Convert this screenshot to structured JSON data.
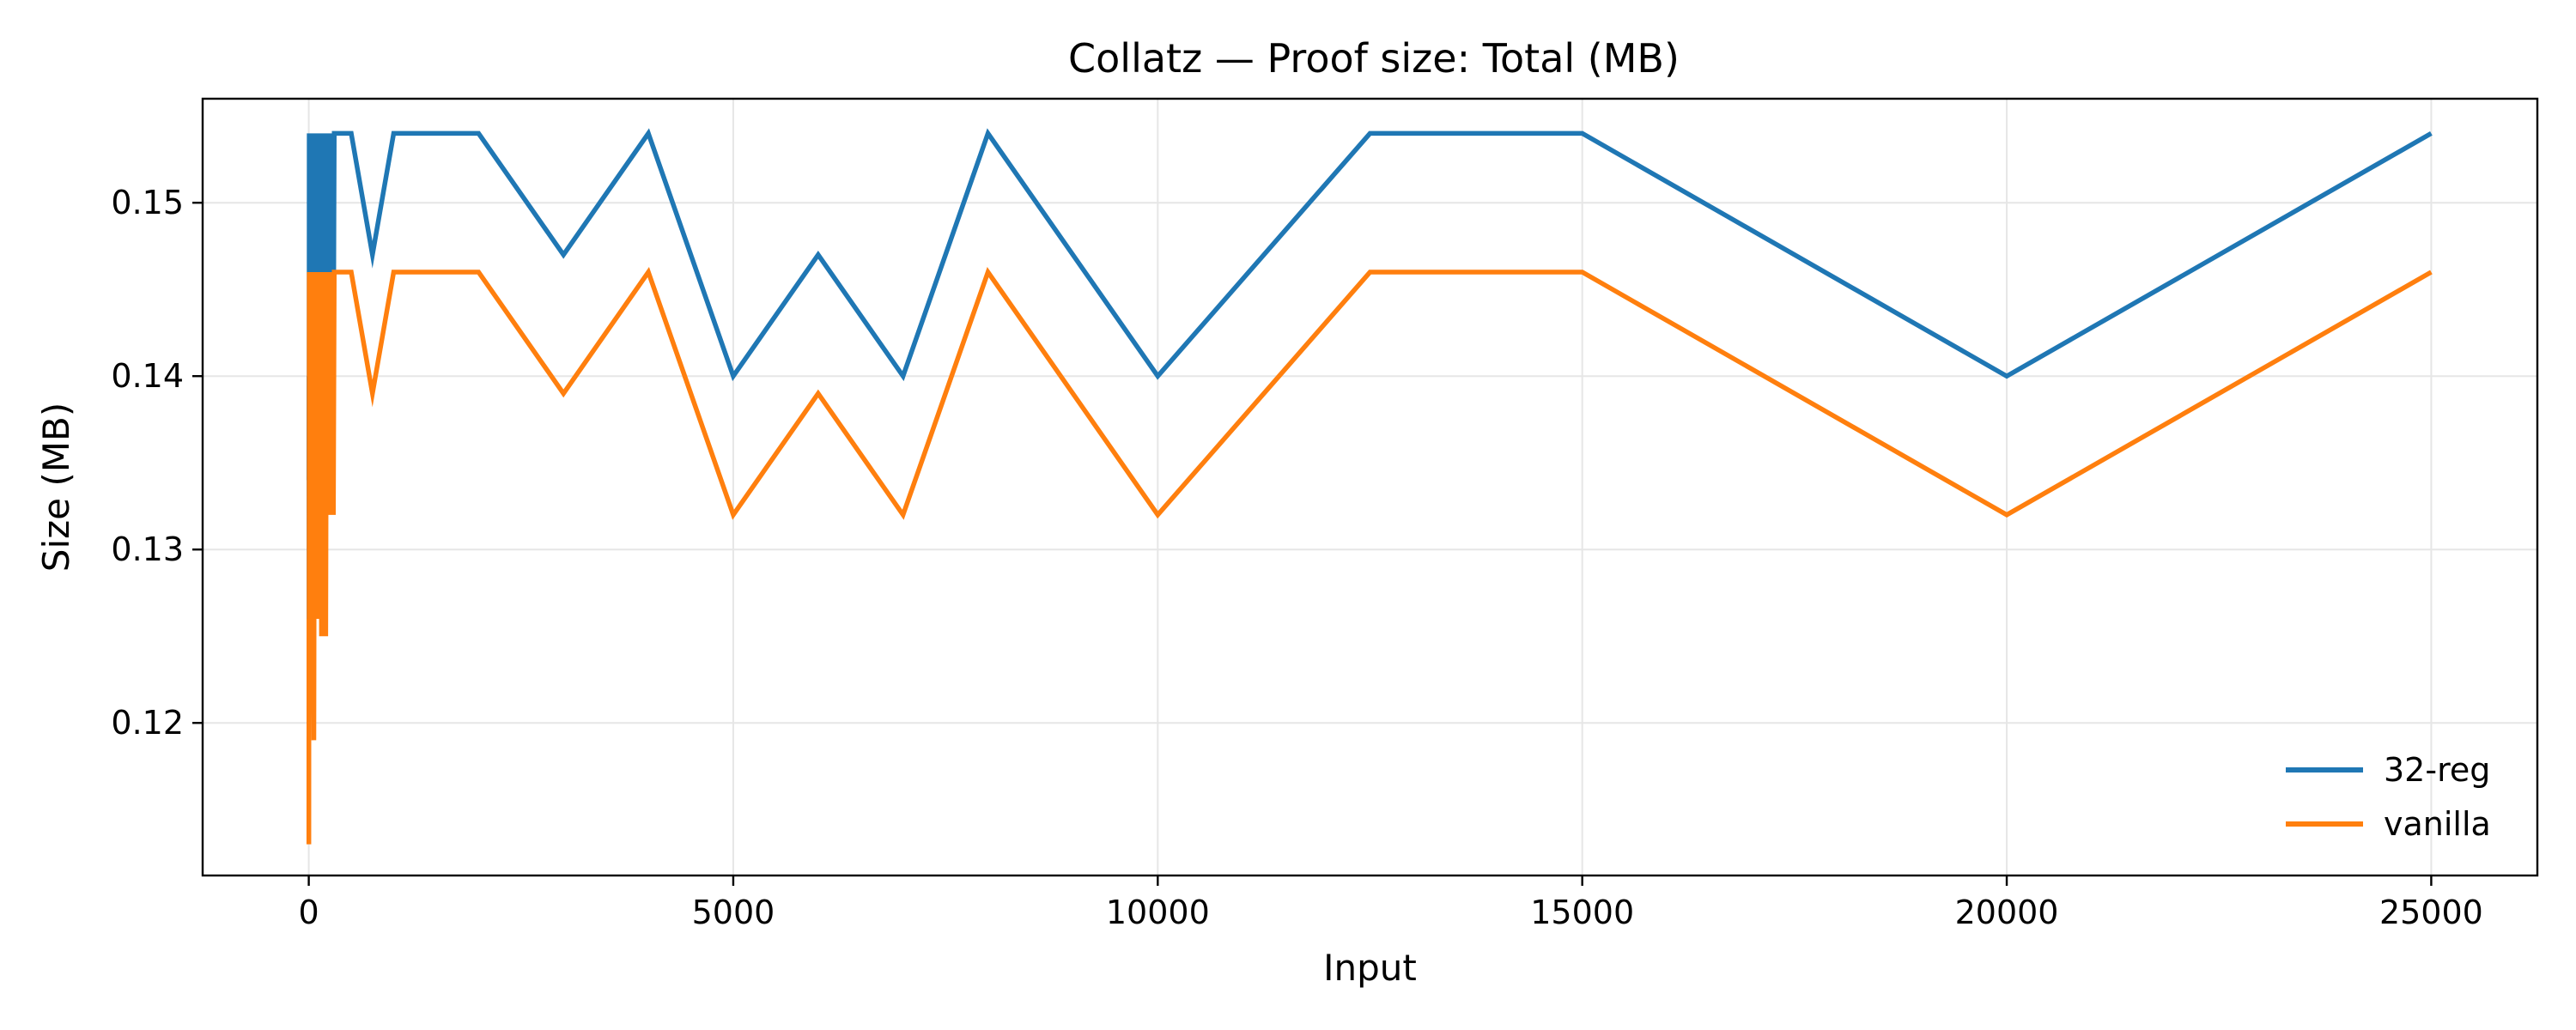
{
  "chart_data": {
    "type": "line",
    "title": "Collatz — Proof size: Total (MB)",
    "xlabel": "Input",
    "ylabel": "Size (MB)",
    "xlim": [
      -1250,
      26250
    ],
    "ylim": [
      0.1112,
      0.156
    ],
    "xticks": [
      0,
      5000,
      10000,
      15000,
      20000,
      25000
    ],
    "xtick_labels": [
      "0",
      "5000",
      "10000",
      "15000",
      "20000",
      "25000"
    ],
    "yticks": [
      0.12,
      0.13,
      0.14,
      0.15
    ],
    "ytick_labels": [
      "0.12",
      "0.13",
      "0.14",
      "0.15"
    ],
    "grid": true,
    "legend_position": "lower-right",
    "series": [
      {
        "name": "32-reg",
        "color": "#1f77b4",
        "x": [
          1,
          2,
          3,
          5,
          10,
          20,
          30,
          40,
          50,
          60,
          70,
          80,
          90,
          100,
          110,
          120,
          130,
          140,
          150,
          160,
          170,
          180,
          190,
          200,
          210,
          220,
          230,
          240,
          250,
          260,
          270,
          280,
          290,
          300,
          500,
          750,
          1000,
          2000,
          3000,
          4000,
          5000,
          6000,
          7000,
          8000,
          10000,
          12500,
          15000,
          20000,
          25000
        ],
        "y": [
          0.134,
          0.14,
          0.126,
          0.154,
          0.14,
          0.154,
          0.147,
          0.154,
          0.14,
          0.154,
          0.147,
          0.154,
          0.133,
          0.154,
          0.14,
          0.154,
          0.147,
          0.154,
          0.133,
          0.154,
          0.14,
          0.154,
          0.147,
          0.154,
          0.133,
          0.154,
          0.14,
          0.154,
          0.14,
          0.154,
          0.147,
          0.154,
          0.14,
          0.154,
          0.154,
          0.147,
          0.154,
          0.154,
          0.147,
          0.154,
          0.14,
          0.147,
          0.14,
          0.154,
          0.14,
          0.154,
          0.154,
          0.14,
          0.154
        ]
      },
      {
        "name": "vanilla",
        "color": "#ff7f0e",
        "x": [
          1,
          2,
          3,
          5,
          10,
          20,
          30,
          40,
          50,
          60,
          70,
          80,
          90,
          100,
          110,
          120,
          130,
          140,
          150,
          160,
          170,
          180,
          190,
          200,
          210,
          220,
          230,
          240,
          250,
          260,
          270,
          280,
          290,
          300,
          500,
          750,
          1000,
          2000,
          3000,
          4000,
          5000,
          6000,
          7000,
          8000,
          10000,
          12500,
          15000,
          20000,
          25000
        ],
        "y": [
          0.113,
          0.126,
          0.119,
          0.146,
          0.133,
          0.146,
          0.14,
          0.146,
          0.133,
          0.119,
          0.146,
          0.139,
          0.146,
          0.126,
          0.146,
          0.133,
          0.146,
          0.139,
          0.125,
          0.146,
          0.132,
          0.146,
          0.139,
          0.125,
          0.146,
          0.132,
          0.146,
          0.139,
          0.132,
          0.146,
          0.139,
          0.146,
          0.132,
          0.146,
          0.146,
          0.139,
          0.146,
          0.146,
          0.139,
          0.146,
          0.132,
          0.139,
          0.132,
          0.146,
          0.132,
          0.146,
          0.146,
          0.132,
          0.146
        ]
      }
    ]
  }
}
